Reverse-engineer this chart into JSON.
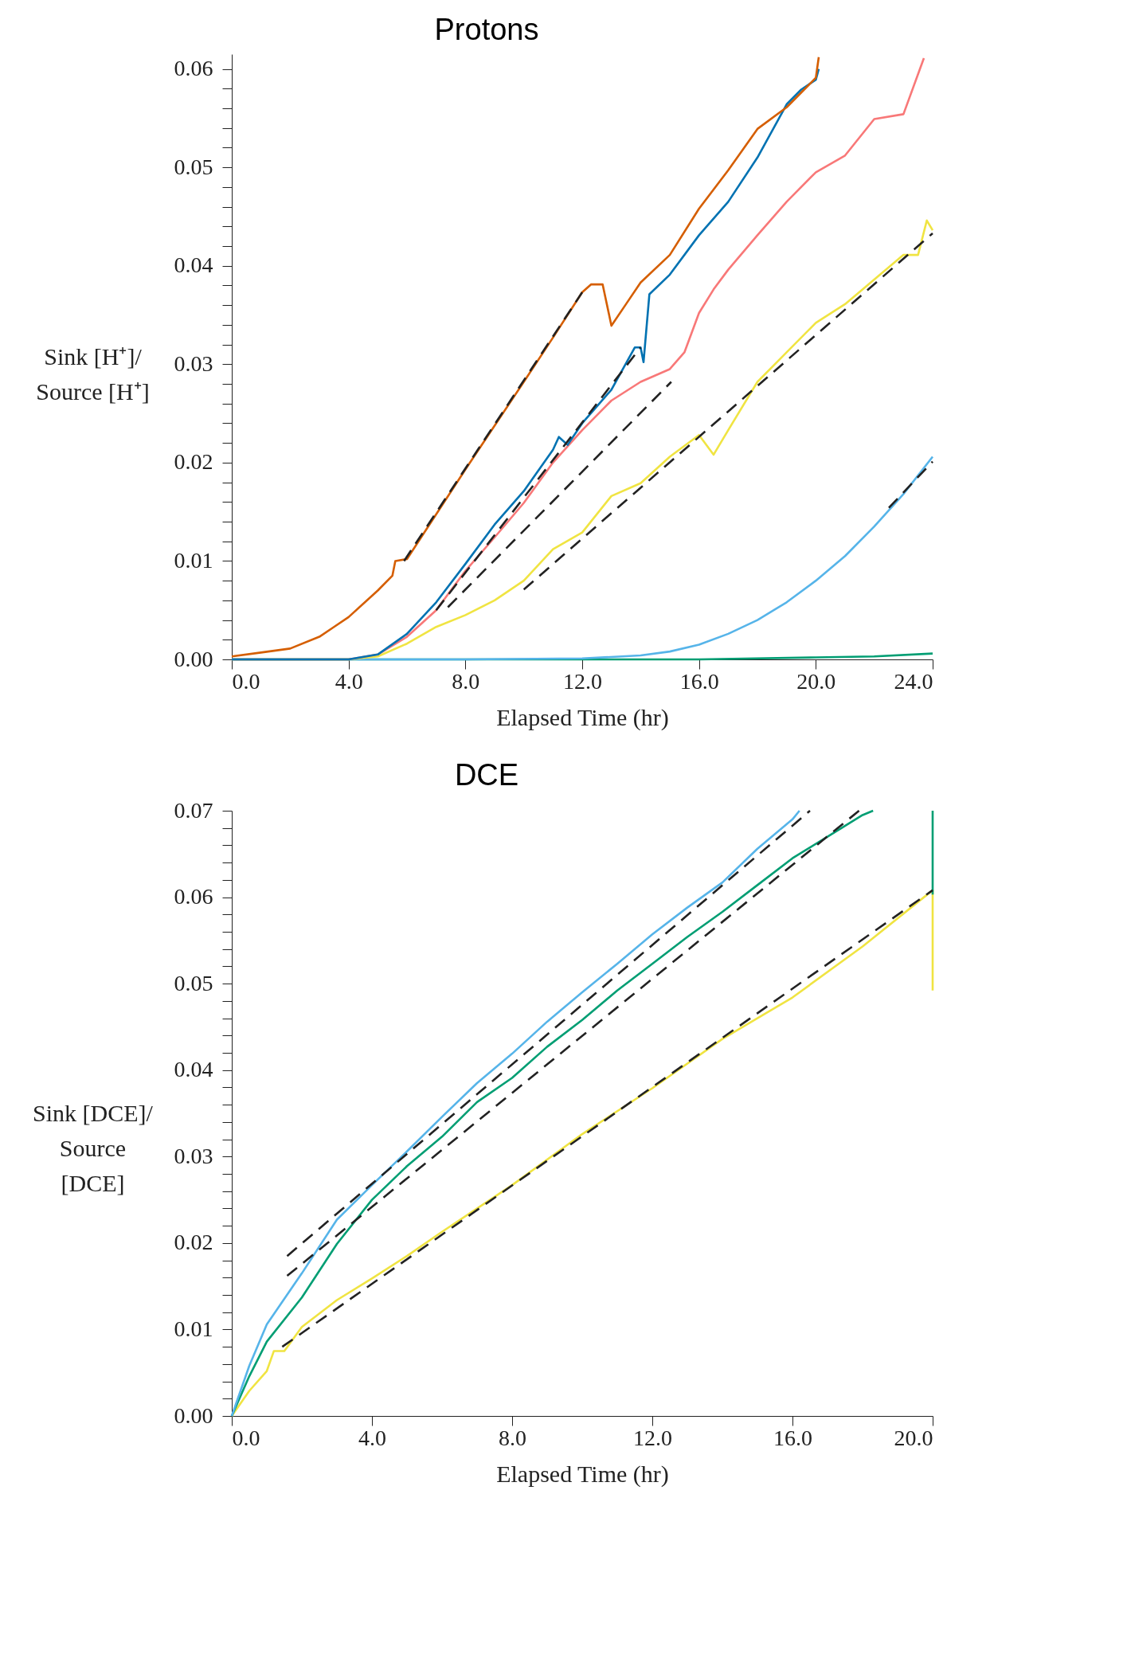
{
  "chart_data": [
    {
      "type": "line",
      "title": "Protons",
      "xlabel": "Elapsed Time (hr)",
      "ylabel": "Sink [H⁺]/ Source [H⁺]",
      "xlim": [
        0,
        24
      ],
      "ylim": [
        0,
        0.0615
      ],
      "xticks": [
        {
          "value": 0,
          "label": "0.0"
        },
        {
          "value": 4,
          "label": "4.0"
        },
        {
          "value": 8,
          "label": "8.0"
        },
        {
          "value": 12,
          "label": "12.0"
        },
        {
          "value": 16,
          "label": "16.0"
        },
        {
          "value": 20,
          "label": "20.0"
        },
        {
          "value": 24,
          "label": "24.0"
        }
      ],
      "yticks": [
        {
          "value": 0,
          "label": "0.00"
        },
        {
          "value": 0.002,
          "label": null
        },
        {
          "value": 0.004,
          "label": null
        },
        {
          "value": 0.006,
          "label": null
        },
        {
          "value": 0.008,
          "label": null
        },
        {
          "value": 0.01,
          "label": "0.01"
        },
        {
          "value": 0.012,
          "label": null
        },
        {
          "value": 0.014,
          "label": null
        },
        {
          "value": 0.016,
          "label": null
        },
        {
          "value": 0.018,
          "label": null
        },
        {
          "value": 0.02,
          "label": "0.02"
        },
        {
          "value": 0.022,
          "label": null
        },
        {
          "value": 0.024,
          "label": null
        },
        {
          "value": 0.026,
          "label": null
        },
        {
          "value": 0.028,
          "label": null
        },
        {
          "value": 0.03,
          "label": "0.03"
        },
        {
          "value": 0.032,
          "label": null
        },
        {
          "value": 0.034,
          "label": null
        },
        {
          "value": 0.036,
          "label": null
        },
        {
          "value": 0.038,
          "label": null
        },
        {
          "value": 0.04,
          "label": "0.04"
        },
        {
          "value": 0.042,
          "label": null
        },
        {
          "value": 0.044,
          "label": null
        },
        {
          "value": 0.046,
          "label": null
        },
        {
          "value": 0.048,
          "label": null
        },
        {
          "value": 0.05,
          "label": "0.05"
        },
        {
          "value": 0.052,
          "label": null
        },
        {
          "value": 0.054,
          "label": null
        },
        {
          "value": 0.056,
          "label": null
        },
        {
          "value": 0.058,
          "label": null
        },
        {
          "value": 0.06,
          "label": "0.06"
        }
      ],
      "grid": false,
      "legend": false,
      "line_style": "solid",
      "series": [
        {
          "color": "#009e73",
          "x": [
            0,
            8,
            16,
            20,
            22,
            24
          ],
          "values": [
            0,
            0,
            0.0,
            0.0002,
            0.0003,
            0.0006
          ]
        },
        {
          "color": "#56b4e9",
          "x": [
            0,
            8,
            12,
            14,
            15,
            16,
            17,
            18,
            19,
            20,
            21,
            22,
            23,
            24
          ],
          "values": [
            0,
            0,
            0.0001,
            0.0004,
            0.0008,
            0.0015,
            0.0026,
            0.004,
            0.0058,
            0.008,
            0.0105,
            0.0135,
            0.0168,
            0.0206
          ]
        },
        {
          "color": "#f0e442",
          "x": [
            0,
            4,
            5,
            6,
            7,
            8,
            9,
            10,
            11,
            12,
            13,
            14,
            15,
            16,
            16.5,
            17,
            18,
            19,
            20,
            21,
            22,
            23,
            23.5,
            23.8,
            24
          ],
          "values": [
            0,
            0,
            0.0003,
            0.0016,
            0.0033,
            0.0045,
            0.006,
            0.008,
            0.0112,
            0.0129,
            0.0166,
            0.0179,
            0.0206,
            0.0228,
            0.0208,
            0.0233,
            0.0282,
            0.0312,
            0.0342,
            0.0361,
            0.0386,
            0.0411,
            0.0411,
            0.0446,
            0.0436
          ]
        },
        {
          "color": "#f87878",
          "x": [
            0,
            4,
            5,
            6,
            7,
            8,
            9,
            10,
            11,
            12,
            13,
            14,
            15,
            15.5,
            16,
            16.5,
            17,
            18,
            19,
            20,
            21,
            22,
            23,
            23.7
          ],
          "values": [
            0,
            0,
            0.0005,
            0.0023,
            0.005,
            0.009,
            0.0124,
            0.0159,
            0.02,
            0.0233,
            0.0263,
            0.0282,
            0.0295,
            0.0312,
            0.0352,
            0.0376,
            0.0396,
            0.0431,
            0.0465,
            0.0495,
            0.0512,
            0.0549,
            0.0554,
            0.0611
          ]
        },
        {
          "color": "#0072b2",
          "x": [
            0,
            4,
            5,
            6,
            7,
            8,
            9,
            10,
            11,
            11.2,
            11.5,
            12,
            13,
            13.8,
            14,
            14.1,
            14.3,
            15,
            16,
            17,
            18,
            19,
            19.5,
            20,
            20.1
          ],
          "values": [
            0,
            0,
            0.0005,
            0.0026,
            0.0058,
            0.0097,
            0.0137,
            0.0171,
            0.0213,
            0.0226,
            0.0218,
            0.024,
            0.0274,
            0.0317,
            0.0317,
            0.0302,
            0.0371,
            0.0391,
            0.0431,
            0.0465,
            0.051,
            0.0564,
            0.0579,
            0.0589,
            0.06
          ]
        },
        {
          "color": "#d55e00",
          "x": [
            0,
            1,
            2,
            3,
            3.5,
            4,
            5,
            5.5,
            5.6,
            6,
            8,
            10,
            11,
            12,
            12.3,
            12.7,
            13,
            13.5,
            14,
            15,
            16,
            17,
            18,
            19,
            20,
            20.1
          ],
          "values": [
            0.0003,
            0.0007,
            0.0011,
            0.0023,
            0.0033,
            0.0043,
            0.007,
            0.0085,
            0.01,
            0.0102,
            0.0193,
            0.0282,
            0.0327,
            0.0373,
            0.0381,
            0.0381,
            0.0339,
            0.0361,
            0.0383,
            0.0411,
            0.0458,
            0.0497,
            0.0539,
            0.0561,
            0.0591,
            0.0612
          ]
        },
        {
          "color": "#222222",
          "line_style": "dashed",
          "x": [
            5.9,
            12.0
          ],
          "values": [
            0.01,
            0.0373
          ]
        },
        {
          "color": "#222222",
          "line_style": "dashed",
          "x": [
            7.0,
            14.0
          ],
          "values": [
            0.005,
            0.0317
          ]
        },
        {
          "color": "#222222",
          "line_style": "dashed",
          "x": [
            7.4,
            15.05
          ],
          "values": [
            0.0053,
            0.0282
          ]
        },
        {
          "color": "#222222",
          "line_style": "dashed",
          "x": [
            10.0,
            24.0
          ],
          "values": [
            0.0071,
            0.0433
          ]
        },
        {
          "color": "#222222",
          "line_style": "dashed",
          "x": [
            22.5,
            24.0
          ],
          "values": [
            0.0154,
            0.0201
          ]
        }
      ]
    },
    {
      "type": "line",
      "title": "DCE",
      "xlabel": "Elapsed Time (hr)",
      "ylabel": "Sink [DCE]/ Source [DCE]",
      "xlim": [
        0,
        20
      ],
      "ylim": [
        0,
        0.07
      ],
      "xticks": [
        {
          "value": 0,
          "label": "0.0"
        },
        {
          "value": 4,
          "label": "4.0"
        },
        {
          "value": 8,
          "label": "8.0"
        },
        {
          "value": 12,
          "label": "12.0"
        },
        {
          "value": 16,
          "label": "16.0"
        },
        {
          "value": 20,
          "label": "20.0"
        }
      ],
      "yticks": [
        {
          "value": 0,
          "label": "0.00"
        },
        {
          "value": 0.002,
          "label": null
        },
        {
          "value": 0.004,
          "label": null
        },
        {
          "value": 0.006,
          "label": null
        },
        {
          "value": 0.008,
          "label": null
        },
        {
          "value": 0.01,
          "label": "0.01"
        },
        {
          "value": 0.012,
          "label": null
        },
        {
          "value": 0.014,
          "label": null
        },
        {
          "value": 0.016,
          "label": null
        },
        {
          "value": 0.018,
          "label": null
        },
        {
          "value": 0.02,
          "label": "0.02"
        },
        {
          "value": 0.022,
          "label": null
        },
        {
          "value": 0.024,
          "label": null
        },
        {
          "value": 0.026,
          "label": null
        },
        {
          "value": 0.028,
          "label": null
        },
        {
          "value": 0.03,
          "label": "0.03"
        },
        {
          "value": 0.032,
          "label": null
        },
        {
          "value": 0.034,
          "label": null
        },
        {
          "value": 0.036,
          "label": null
        },
        {
          "value": 0.038,
          "label": null
        },
        {
          "value": 0.04,
          "label": "0.04"
        },
        {
          "value": 0.042,
          "label": null
        },
        {
          "value": 0.044,
          "label": null
        },
        {
          "value": 0.046,
          "label": null
        },
        {
          "value": 0.048,
          "label": null
        },
        {
          "value": 0.05,
          "label": "0.05"
        },
        {
          "value": 0.052,
          "label": null
        },
        {
          "value": 0.054,
          "label": null
        },
        {
          "value": 0.056,
          "label": null
        },
        {
          "value": 0.058,
          "label": null
        },
        {
          "value": 0.06,
          "label": "0.06"
        },
        {
          "value": 0.062,
          "label": null
        },
        {
          "value": 0.064,
          "label": null
        },
        {
          "value": 0.066,
          "label": null
        },
        {
          "value": 0.068,
          "label": null
        },
        {
          "value": 0.07,
          "label": "0.07"
        }
      ],
      "grid": false,
      "legend": false,
      "line_style": "solid",
      "series": [
        {
          "color": "#f0e442",
          "x": [
            0,
            0.5,
            1,
            1.2,
            1.5,
            2,
            3,
            4,
            5,
            6,
            8,
            10,
            12,
            14,
            16,
            18,
            20,
            20
          ],
          "values": [
            0,
            0.0029,
            0.0052,
            0.0075,
            0.0075,
            0.0103,
            0.0134,
            0.0159,
            0.0185,
            0.0213,
            0.0267,
            0.0326,
            0.0379,
            0.0436,
            0.0484,
            0.0543,
            0.0608,
            0.0492
          ]
        },
        {
          "color": "#009e73",
          "x": [
            0,
            0.5,
            1,
            2,
            3,
            4,
            5,
            6,
            7,
            8,
            9,
            10,
            11,
            12,
            13,
            14,
            15,
            16,
            17,
            18,
            18.3,
            19,
            20,
            20
          ],
          "values": [
            0,
            0.0046,
            0.0086,
            0.0137,
            0.0199,
            0.025,
            0.0289,
            0.0323,
            0.0363,
            0.0391,
            0.0427,
            0.0458,
            0.0492,
            0.0523,
            0.0554,
            0.0583,
            0.0614,
            0.0645,
            0.067,
            0.0695,
            0.07,
            null,
            0.07,
            0.0603
          ]
        },
        {
          "color": "#56b4e9",
          "x": [
            0,
            0.5,
            1,
            2,
            3,
            4,
            5,
            6,
            7,
            8,
            9,
            10,
            11,
            12,
            13,
            14,
            15,
            16,
            16.2
          ],
          "values": [
            0,
            0.0058,
            0.0106,
            0.0165,
            0.0227,
            0.0267,
            0.0306,
            0.0346,
            0.0385,
            0.0419,
            0.0456,
            0.049,
            0.0523,
            0.0557,
            0.0588,
            0.0617,
            0.0656,
            0.069,
            0.07
          ]
        },
        {
          "color": "#222222",
          "line_style": "dashed",
          "x": [
            1.58,
            16.5
          ],
          "values": [
            0.0185,
            0.07
          ]
        },
        {
          "color": "#222222",
          "line_style": "dashed",
          "x": [
            1.58,
            17.9
          ],
          "values": [
            0.0162,
            0.07
          ]
        },
        {
          "color": "#222222",
          "line_style": "dashed",
          "x": [
            1.44,
            20.0
          ],
          "values": [
            0.008,
            0.0608
          ]
        }
      ]
    }
  ]
}
